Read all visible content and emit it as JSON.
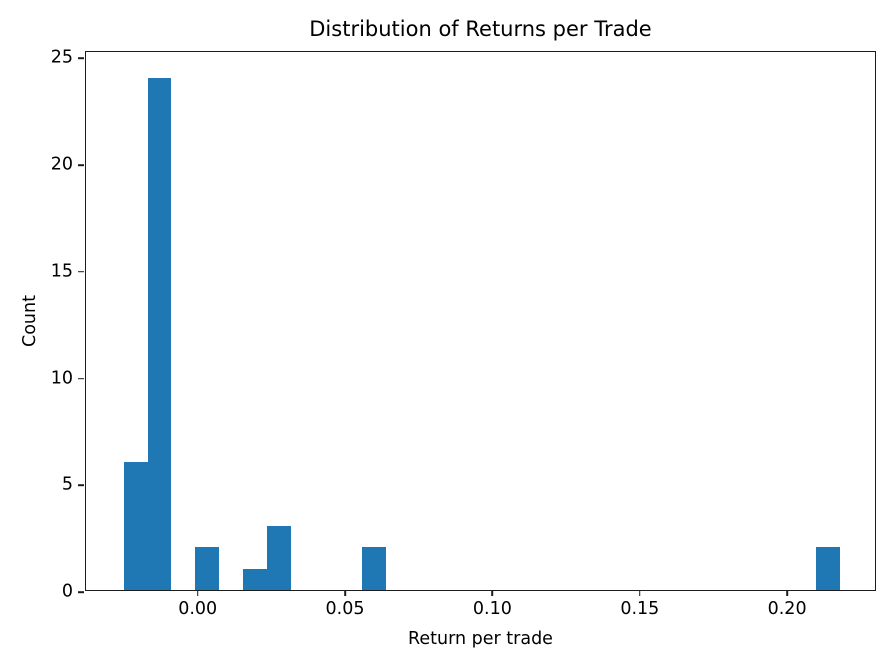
{
  "chart_data": {
    "type": "bar",
    "subtype": "histogram",
    "title": "Distribution of Returns per Trade",
    "xlabel": "Return per trade",
    "ylabel": "Count",
    "xlim": [
      -0.0379,
      0.2305
    ],
    "ylim": [
      0,
      25.3
    ],
    "grid": false,
    "legend_position": "none",
    "bar_color": "#1f77b4",
    "axis_color": "#1c1c1c",
    "background_color": "#ffffff",
    "bin_width": 0.0081,
    "x_ticks": [
      {
        "value": 0.0,
        "label": "0.00"
      },
      {
        "value": 0.05,
        "label": "0.05"
      },
      {
        "value": 0.1,
        "label": "0.10"
      },
      {
        "value": 0.15,
        "label": "0.15"
      },
      {
        "value": 0.2,
        "label": "0.20"
      }
    ],
    "y_ticks": [
      {
        "value": 0,
        "label": "0"
      },
      {
        "value": 5,
        "label": "5"
      },
      {
        "value": 10,
        "label": "10"
      },
      {
        "value": 15,
        "label": "15"
      },
      {
        "value": 20,
        "label": "20"
      },
      {
        "value": 25,
        "label": "25"
      }
    ],
    "bins": [
      {
        "x0": -0.0251,
        "x1": -0.017,
        "count": 6
      },
      {
        "x0": -0.017,
        "x1": -0.0089,
        "count": 24
      },
      {
        "x0": -0.0008,
        "x1": 0.0073,
        "count": 2
      },
      {
        "x0": 0.0154,
        "x1": 0.0235,
        "count": 1
      },
      {
        "x0": 0.0235,
        "x1": 0.0316,
        "count": 3
      },
      {
        "x0": 0.0559,
        "x1": 0.064,
        "count": 2
      },
      {
        "x0": 0.2098,
        "x1": 0.2179,
        "count": 2
      }
    ]
  }
}
